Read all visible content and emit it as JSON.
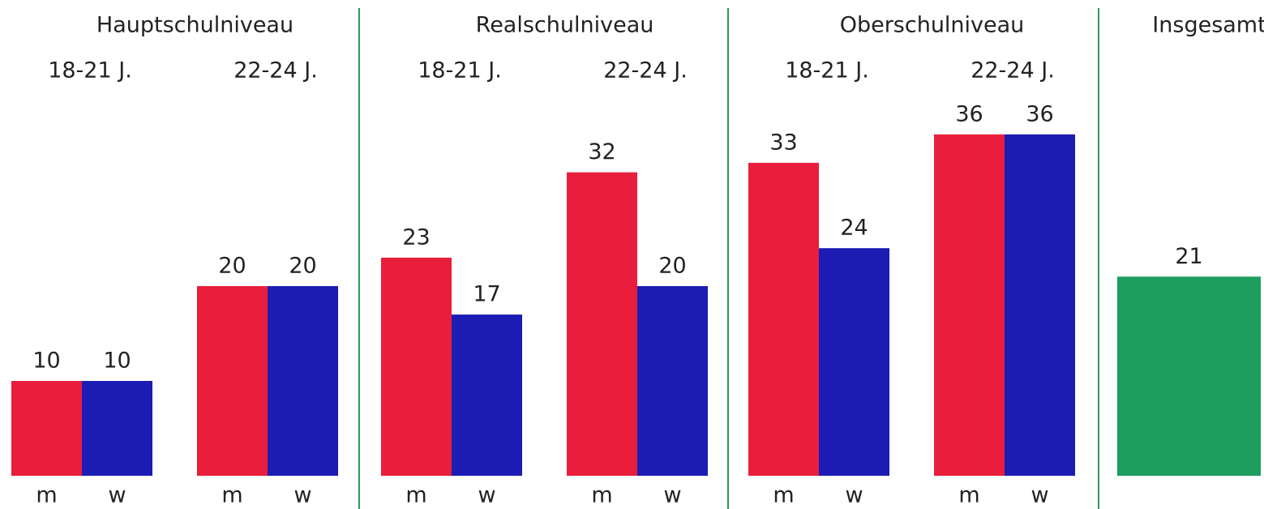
{
  "chart_data": {
    "type": "bar",
    "groups": [
      {
        "title": "Hauptschulniveau",
        "subgroups": [
          {
            "label": "18-21 J.",
            "bars": [
              {
                "label": "m",
                "value": 10,
                "color": "#e81e3c"
              },
              {
                "label": "w",
                "value": 10,
                "color": "#1c1cb4"
              }
            ]
          },
          {
            "label": "22-24 J.",
            "bars": [
              {
                "label": "m",
                "value": 20,
                "color": "#e81e3c"
              },
              {
                "label": "w",
                "value": 20,
                "color": "#1c1cb4"
              }
            ]
          }
        ]
      },
      {
        "title": "Realschulniveau",
        "subgroups": [
          {
            "label": "18-21 J.",
            "bars": [
              {
                "label": "m",
                "value": 23,
                "color": "#e81e3c"
              },
              {
                "label": "w",
                "value": 17,
                "color": "#1c1cb4"
              }
            ]
          },
          {
            "label": "22-24 J.",
            "bars": [
              {
                "label": "m",
                "value": 32,
                "color": "#e81e3c"
              },
              {
                "label": "w",
                "value": 20,
                "color": "#1c1cb4"
              }
            ]
          }
        ]
      },
      {
        "title": "Oberschulniveau",
        "subgroups": [
          {
            "label": "18-21 J.",
            "bars": [
              {
                "label": "m",
                "value": 33,
                "color": "#e81e3c"
              },
              {
                "label": "w",
                "value": 24,
                "color": "#1c1cb4"
              }
            ]
          },
          {
            "label": "22-24 J.",
            "bars": [
              {
                "label": "m",
                "value": 36,
                "color": "#e81e3c"
              },
              {
                "label": "w",
                "value": 36,
                "color": "#1c1cb4"
              }
            ]
          }
        ]
      },
      {
        "title": "Insgesamt",
        "subgroups": [
          {
            "bars": [
              {
                "value": 21,
                "color": "#1e9e5e"
              }
            ]
          }
        ]
      }
    ]
  }
}
